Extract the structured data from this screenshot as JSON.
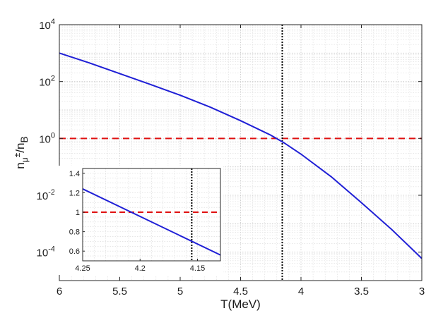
{
  "chart_data": [
    {
      "type": "line",
      "xlabel": "T(MeV)",
      "ylabel": {
        "base": "n",
        "sub1": "μ",
        "sup1": "±",
        "sep": "/n",
        "sub2": "B"
      },
      "xlim": [
        6,
        3
      ],
      "x_reversed": true,
      "ylim": [
        1e-05,
        10000
      ],
      "yscale": "log",
      "grid": true,
      "x_ticks": [
        6,
        5.5,
        5,
        4.5,
        4,
        3.5,
        3
      ],
      "x_tick_labels": [
        "6",
        "5.5",
        "5",
        "4.5",
        "4",
        "3.5",
        "3"
      ],
      "y_ticks": [
        0.0001,
        0.01,
        1,
        100,
        10000
      ],
      "y_tick_labels": [
        {
          "base": "10",
          "exp": "-4"
        },
        {
          "base": "10",
          "exp": "-2"
        },
        {
          "base": "10",
          "exp": "0"
        },
        {
          "base": "10",
          "exp": "2"
        },
        {
          "base": "10",
          "exp": "4"
        }
      ],
      "series": [
        {
          "color": "#1f1fd6",
          "style": "solid",
          "x": [
            6.0,
            5.75,
            5.5,
            5.25,
            5.0,
            4.75,
            4.5,
            4.25,
            4.14,
            4.0,
            3.75,
            3.5,
            3.25,
            3.0
          ],
          "y": [
            1000,
            450,
            190,
            80,
            33,
            12.5,
            4.2,
            1.3,
            0.7,
            0.28,
            0.045,
            0.0055,
            0.00063,
            6e-05
          ]
        }
      ],
      "reference_lines": [
        {
          "orientation": "horizontal",
          "value": 1,
          "color": "#e01010",
          "style": "dashed"
        },
        {
          "orientation": "vertical",
          "value": 4.155,
          "color": "#000000",
          "style": "dotted"
        }
      ]
    },
    {
      "type": "line",
      "role": "inset",
      "xlim": [
        4.25,
        4.13
      ],
      "x_reversed": true,
      "ylim": [
        0.5,
        1.45
      ],
      "yscale": "linear",
      "grid": true,
      "x_ticks": [
        4.25,
        4.2,
        4.15
      ],
      "x_tick_labels": [
        "4.25",
        "4.2",
        "4.15"
      ],
      "y_ticks": [
        0.6,
        0.8,
        1.0,
        1.2,
        1.4
      ],
      "y_tick_labels": [
        "0.6",
        "0.8",
        "1",
        "1.2",
        "1.4"
      ],
      "series": [
        {
          "color": "#1f1fd6",
          "style": "solid",
          "x": [
            4.25,
            4.13
          ],
          "y": [
            1.24,
            0.56
          ]
        }
      ],
      "reference_lines": [
        {
          "orientation": "horizontal",
          "value": 1,
          "color": "#e01010",
          "style": "dashed"
        },
        {
          "orientation": "vertical",
          "value": 4.155,
          "color": "#000000",
          "style": "dotted"
        }
      ]
    }
  ]
}
